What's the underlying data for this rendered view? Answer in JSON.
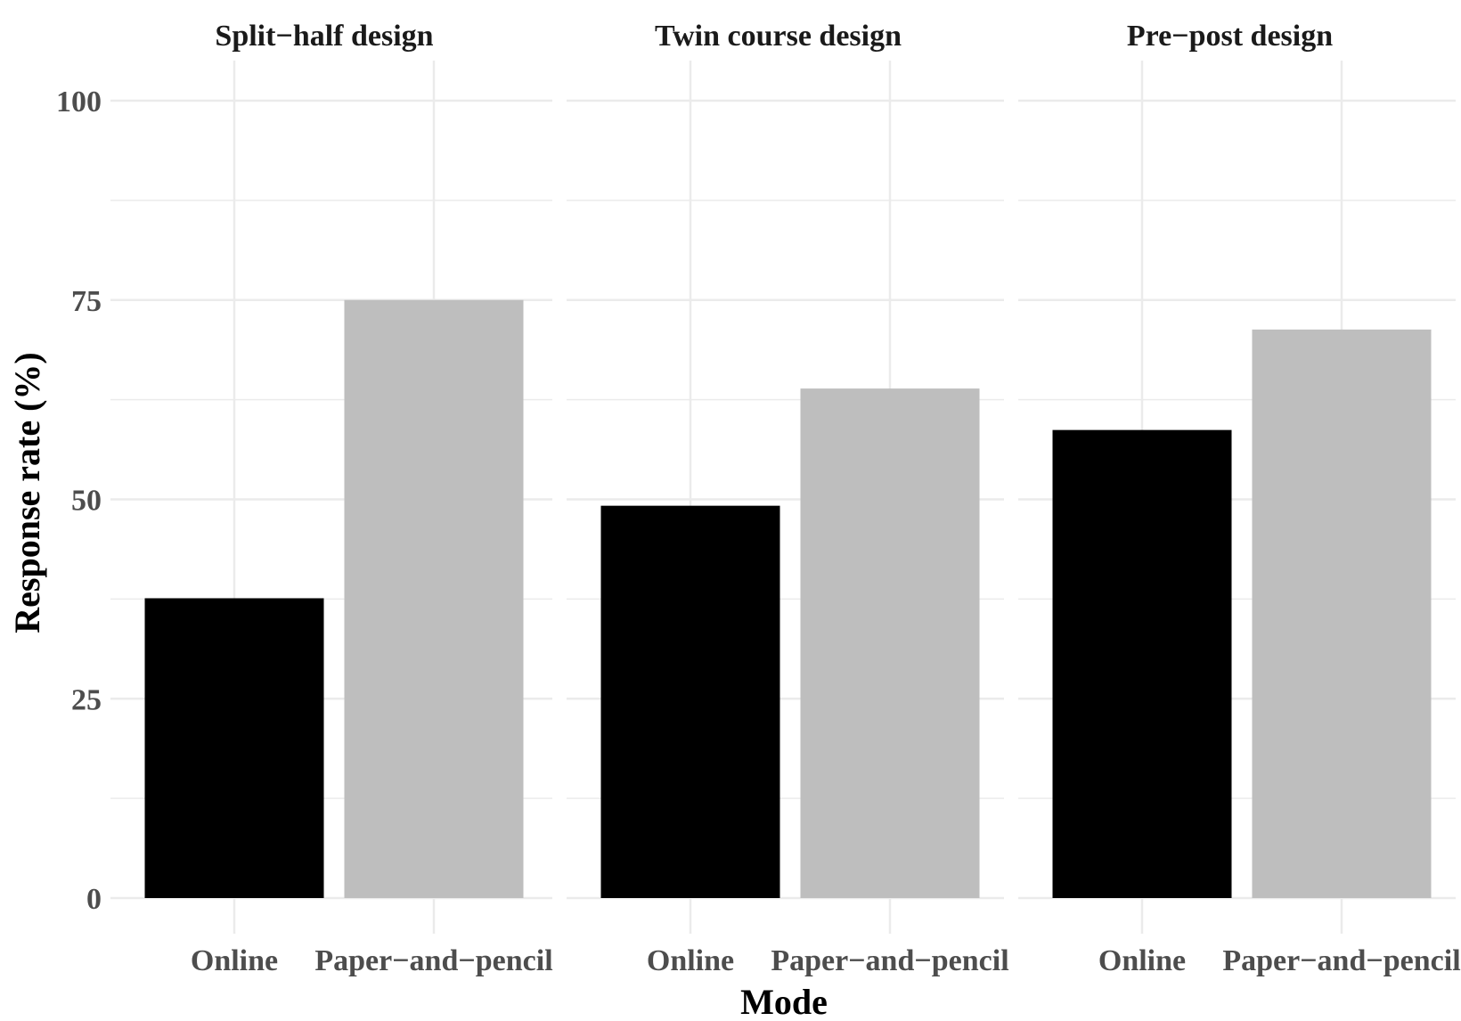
{
  "chart_data": {
    "type": "bar",
    "xlabel": "Mode",
    "ylabel": "Response rate (%)",
    "ylim": [
      0,
      105
    ],
    "yticks": [
      0,
      25,
      50,
      75,
      100
    ],
    "categories": [
      "Online",
      "Paper−and−pencil"
    ],
    "colors": {
      "Online": "#000000",
      "Paper−and−pencil": "#bebebe"
    },
    "grid": true,
    "facets": [
      {
        "title": "Split−half design",
        "values": [
          37.6,
          75.0
        ]
      },
      {
        "title": "Twin course design",
        "values": [
          49.2,
          63.9
        ]
      },
      {
        "title": "Pre−post design",
        "values": [
          58.7,
          71.3
        ]
      }
    ]
  }
}
